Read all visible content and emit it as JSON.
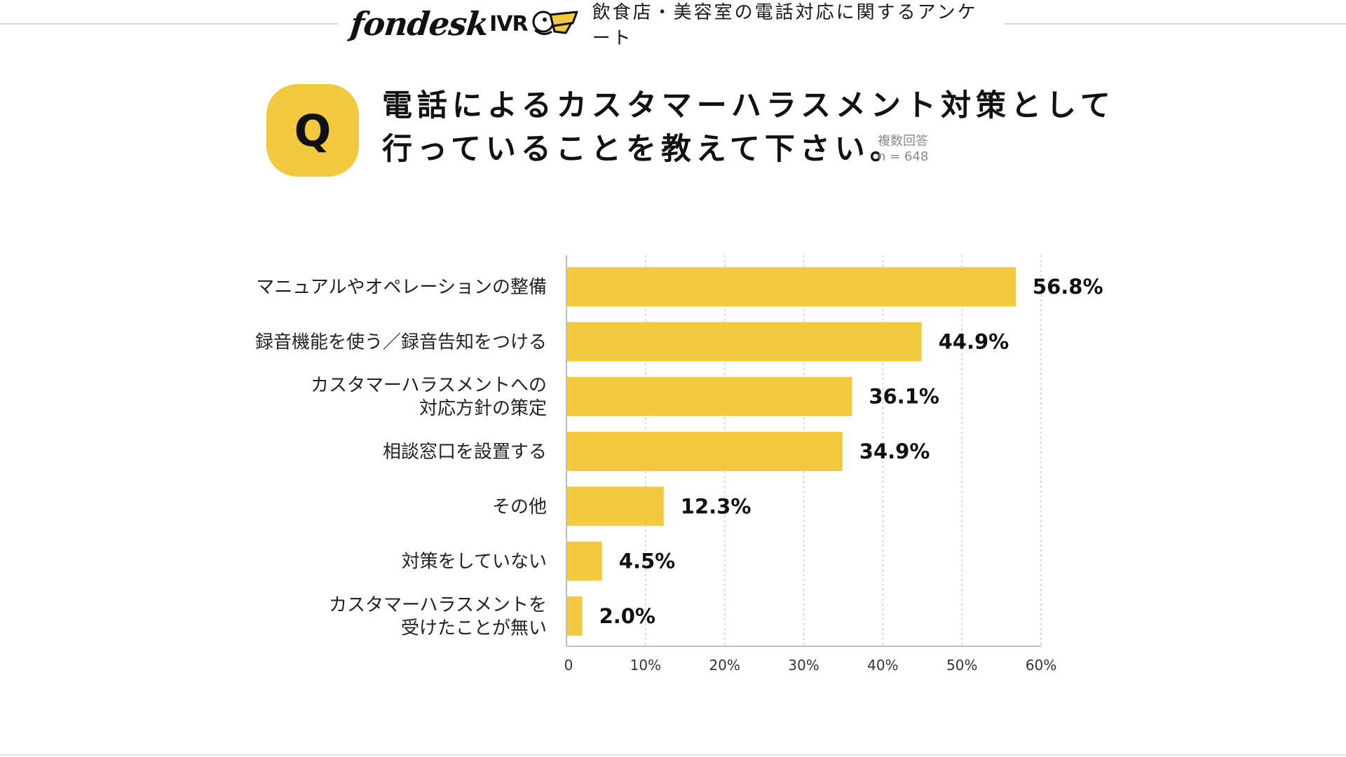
{
  "header": {
    "logo_text": "fondesk",
    "logo_sub": "IVR",
    "survey_title": "飲食店・美容室の電話対応に関するアンケート"
  },
  "question": {
    "badge": "Q",
    "line1": "電話によるカスタマーハラスメント対策として",
    "line2": "行っていることを教えて下さい。",
    "answer_type": "複数回答",
    "sample": "n = 648"
  },
  "colors": {
    "accent": "#f2c93f",
    "bar": "#f2c93f",
    "text": "#1a1a1a"
  },
  "chart_data": {
    "type": "bar",
    "orientation": "horizontal",
    "title": "電話によるカスタマーハラスメント対策として行っていることを教えて下さい。",
    "categories": [
      [
        "マニュアルやオペレーションの整備"
      ],
      [
        "録音機能を使う／録音告知をつける"
      ],
      [
        "カスタマーハラスメントへの",
        "対応方針の策定"
      ],
      [
        "相談窓口を設置する"
      ],
      [
        "その他"
      ],
      [
        "対策をしていない"
      ],
      [
        "カスタマーハラスメントを",
        "受けたことが無い"
      ]
    ],
    "values": [
      56.8,
      44.9,
      36.1,
      34.9,
      12.3,
      4.5,
      2.0
    ],
    "value_labels": [
      "56.8%",
      "44.9%",
      "36.1%",
      "34.9%",
      "12.3%",
      "4.5%",
      "2.0%"
    ],
    "xlim": [
      0,
      60
    ],
    "xticks": [
      0,
      10,
      20,
      30,
      40,
      50,
      60
    ],
    "xtick_labels": [
      "0",
      "10%",
      "20%",
      "30%",
      "40%",
      "50%",
      "60%"
    ],
    "grid": true,
    "xlabel": "",
    "ylabel": ""
  }
}
